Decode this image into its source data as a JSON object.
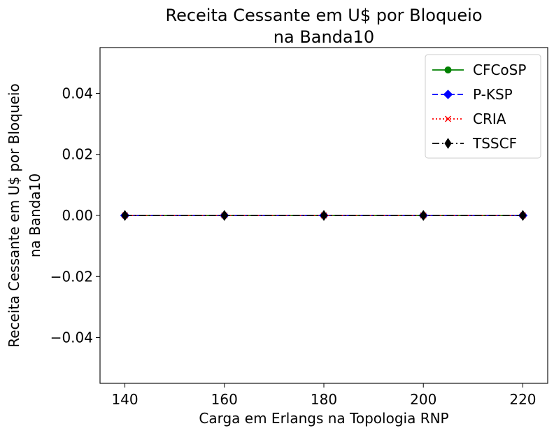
{
  "chart_data": {
    "type": "line",
    "title_lines": [
      "Receita Cessante em U$ por Bloqueio",
      "na Banda10"
    ],
    "xlabel": "Carga em Erlangs na Topologia RNP",
    "ylabel_lines": [
      "Receita Cessante em U$ por Bloqueio",
      "na Banda10"
    ],
    "x": [
      140,
      160,
      180,
      200,
      220
    ],
    "xlim": [
      135,
      225
    ],
    "ylim": [
      -0.055,
      0.055
    ],
    "xticks": [
      140,
      160,
      180,
      200,
      220
    ],
    "xtick_labels": [
      "140",
      "160",
      "180",
      "200",
      "220"
    ],
    "yticks": [
      -0.04,
      -0.02,
      0.0,
      0.02,
      0.04
    ],
    "ytick_labels": [
      "−0.04",
      "−0.02",
      "0.00",
      "0.02",
      "0.04"
    ],
    "grid": false,
    "legend_position": "top-right",
    "series": [
      {
        "name": "CFCoSP",
        "values": [
          0,
          0,
          0,
          0,
          0
        ],
        "color": "#008000",
        "marker": "circle",
        "dash": "solid"
      },
      {
        "name": "P-KSP",
        "values": [
          0,
          0,
          0,
          0,
          0
        ],
        "color": "#0000ff",
        "marker": "diamond",
        "dash": "dashed"
      },
      {
        "name": "CRIA",
        "values": [
          0,
          0,
          0,
          0,
          0
        ],
        "color": "#ff0000",
        "marker": "x",
        "dash": "dotted"
      },
      {
        "name": "TSSCF",
        "values": [
          0,
          0,
          0,
          0,
          0
        ],
        "color": "#000000",
        "marker": "thin-diamond",
        "dash": "dashdot"
      }
    ]
  }
}
